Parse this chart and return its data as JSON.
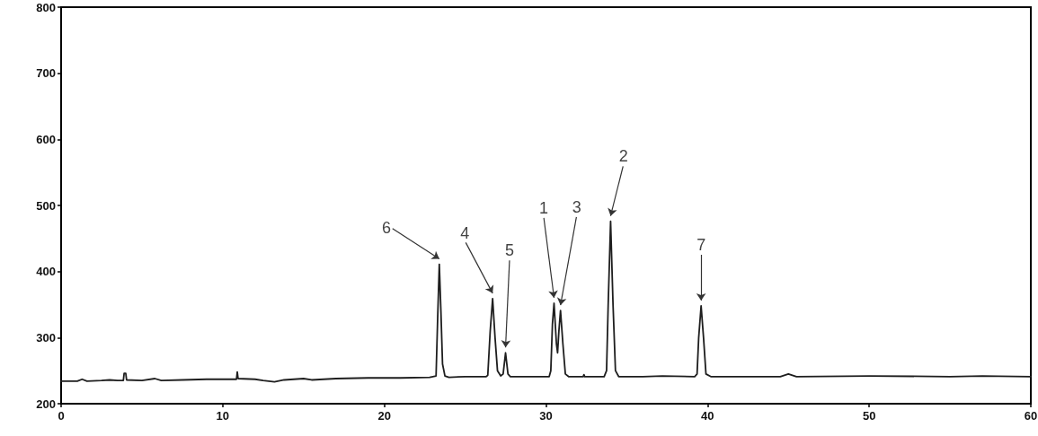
{
  "chart_data": {
    "type": "line",
    "color": "#1e1e1e",
    "marker": "none",
    "x": [
      0,
      1.0,
      1.3,
      1.6,
      2.5,
      3.0,
      3.5,
      3.85,
      3.9,
      4.0,
      4.05,
      5.0,
      5.8,
      6.2,
      7.5,
      9.0,
      10.0,
      10.85,
      10.9,
      10.95,
      12.0,
      12.5,
      13.2,
      13.8,
      15.0,
      15.5,
      17.0,
      19.0,
      21.0,
      22.8,
      23.2,
      23.3,
      23.4,
      23.5,
      23.6,
      23.75,
      24.0,
      25.0,
      26.3,
      26.4,
      26.55,
      26.7,
      26.85,
      27.0,
      27.2,
      27.35,
      27.5,
      27.65,
      27.8,
      29.0,
      30.2,
      30.3,
      30.4,
      30.5,
      30.65,
      30.72,
      30.8,
      30.9,
      31.05,
      31.2,
      31.4,
      32.3,
      32.35,
      32.4,
      33.6,
      33.75,
      33.85,
      34.0,
      34.15,
      34.3,
      34.5,
      36.0,
      37.2,
      39.2,
      39.35,
      39.45,
      39.6,
      39.75,
      39.9,
      40.2,
      44.5,
      45.0,
      45.5,
      50.0,
      55.0,
      57.0,
      60.0
    ],
    "values": [
      234,
      234,
      237,
      234,
      235,
      236,
      235,
      235,
      246,
      246,
      236,
      235,
      238,
      235,
      236,
      237,
      237,
      237,
      248,
      238,
      237,
      235,
      233,
      236,
      238,
      236,
      238,
      239,
      239,
      240,
      242,
      330,
      411,
      340,
      260,
      242,
      240,
      241,
      241,
      243,
      310,
      359,
      300,
      250,
      242,
      245,
      277,
      245,
      241,
      241,
      241,
      250,
      320,
      352,
      290,
      277,
      310,
      341,
      290,
      245,
      241,
      241,
      244,
      241,
      241,
      250,
      350,
      476,
      350,
      250,
      241,
      241,
      242,
      241,
      245,
      300,
      348,
      300,
      245,
      241,
      241,
      245,
      241,
      242,
      241,
      242,
      241
    ],
    "xlim": [
      0,
      60
    ],
    "xticks": [
      0,
      10,
      20,
      30,
      40,
      50,
      60
    ],
    "ylim": [
      200,
      800
    ],
    "yticks": [
      200,
      300,
      400,
      500,
      600,
      700,
      800
    ],
    "annotations": [
      {
        "text": "6",
        "x": 23.4,
        "y": 411
      },
      {
        "text": "4",
        "x": 26.7,
        "y": 359
      },
      {
        "text": "5",
        "x": 27.5,
        "y": 277
      },
      {
        "text": "1",
        "x": 30.5,
        "y": 352
      },
      {
        "text": "3",
        "x": 30.9,
        "y": 341
      },
      {
        "text": "2",
        "x": 34.0,
        "y": 476
      },
      {
        "text": "7",
        "x": 39.6,
        "y": 348
      }
    ]
  }
}
